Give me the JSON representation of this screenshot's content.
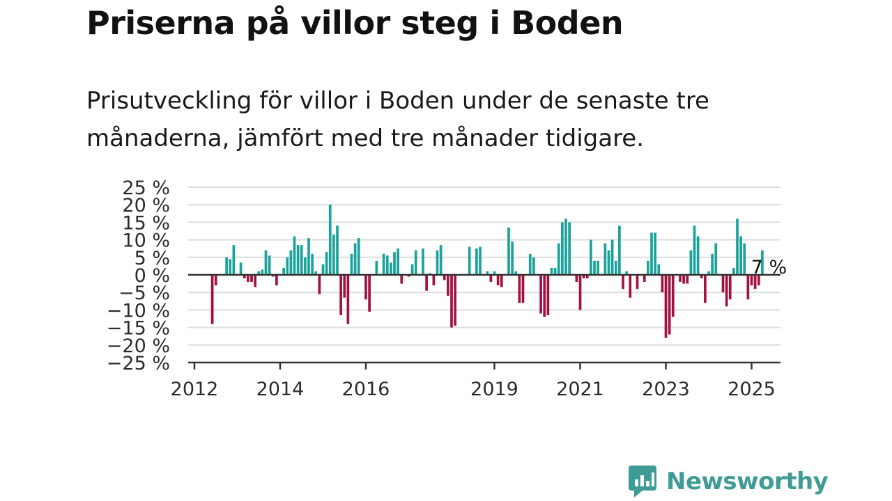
{
  "title": "Priserna på villor steg i Boden",
  "subtitle": "Prisutveckling för villor i Boden under de senaste tre månaderna, jämfört med tre månader tidigare.",
  "brand": "Newsworthy",
  "colors": {
    "positive": "#1aa39a",
    "negative": "#a3123f",
    "logo": "#3f9c95"
  },
  "chart_data": {
    "type": "bar",
    "title": "",
    "xlabel": "",
    "ylabel": "",
    "ylim": [
      -25,
      25
    ],
    "y_ticks": [
      25,
      20,
      15,
      10,
      5,
      0,
      -5,
      -10,
      -15,
      -20,
      -25
    ],
    "y_tick_labels": [
      "25 %",
      "20 %",
      "15 %",
      "10 %",
      "5 %",
      "0 %",
      "−5 %",
      "−10 %",
      "−15 %",
      "−20 %",
      "−25 %"
    ],
    "x_ticks": [
      {
        "label": "2012",
        "month_index": 0
      },
      {
        "label": "2014",
        "month_index": 24
      },
      {
        "label": "2016",
        "month_index": 48
      },
      {
        "label": "2019",
        "month_index": 84
      },
      {
        "label": "2021",
        "month_index": 108
      },
      {
        "label": "2023",
        "month_index": 132
      },
      {
        "label": "2025",
        "month_index": 156
      }
    ],
    "start_month": "2012-01",
    "annotation": {
      "text": "7 %",
      "month_index": 156
    },
    "values": [
      null,
      null,
      null,
      null,
      null,
      -14,
      -3,
      null,
      null,
      5,
      4.5,
      8.5,
      null,
      3.5,
      -1,
      -2,
      -2,
      -3.5,
      1,
      1.5,
      7,
      5.5,
      -0.5,
      -3,
      null,
      2,
      5,
      7,
      11,
      8.5,
      8.5,
      5,
      10.5,
      6,
      1,
      -5.5,
      3,
      6.5,
      20,
      11.5,
      14,
      -11.5,
      -6.5,
      -14,
      6,
      9,
      10.5,
      null,
      -7,
      -10.5,
      null,
      4,
      null,
      6,
      5.5,
      3.5,
      6.5,
      7.5,
      -2.5,
      null,
      -0.5,
      3,
      7,
      null,
      7.5,
      -4.5,
      0.5,
      -3,
      7,
      8.5,
      -1.5,
      -6,
      -15,
      -14.5,
      null,
      null,
      null,
      8,
      null,
      7.5,
      8,
      null,
      1,
      -2,
      1,
      -3,
      -3.5,
      null,
      13.5,
      9.5,
      1,
      -8,
      -8,
      null,
      6,
      5,
      null,
      -11,
      -12,
      -11.5,
      2,
      2,
      9,
      15,
      16,
      15,
      null,
      -2,
      -10,
      -1,
      -1,
      10,
      4,
      4,
      null,
      9,
      7,
      10,
      4,
      14,
      -4,
      1,
      -6.5,
      null,
      -4,
      null,
      -2,
      4,
      12,
      12,
      3,
      -5,
      -18,
      -17,
      -12,
      null,
      -2,
      -2.5,
      -2.5,
      7,
      14,
      11,
      -1,
      -8,
      1,
      6,
      9,
      null,
      -5,
      -9,
      -7,
      2,
      16,
      11,
      9,
      -7,
      -3,
      -4,
      -3,
      7
    ]
  }
}
